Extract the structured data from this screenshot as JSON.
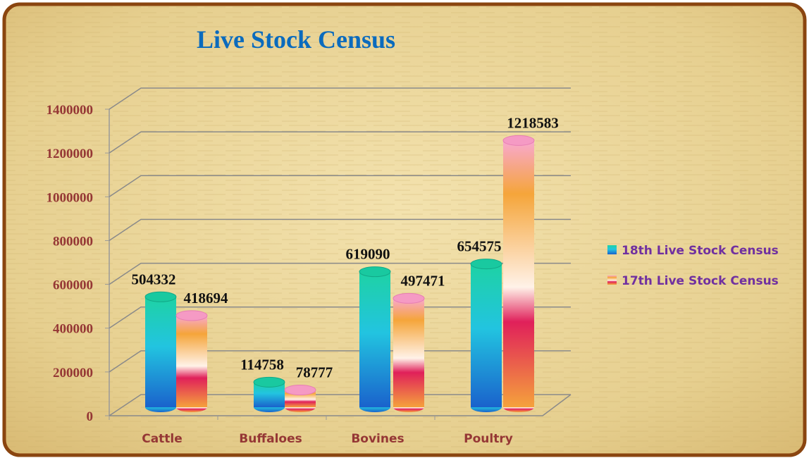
{
  "chart_data": {
    "type": "bar",
    "title": "Live Stock Census",
    "categories": [
      "Cattle",
      "Buffaloes",
      "Bovines",
      "Poultry"
    ],
    "series": [
      {
        "name": "18th Live Stock Census",
        "color": "#1ec8a8",
        "values": [
          504332,
          114758,
          619090,
          654575
        ]
      },
      {
        "name": "17th Live Stock Census",
        "color": "#f5a23c",
        "values": [
          418694,
          78777,
          497471,
          1218583
        ]
      }
    ],
    "ylim": [
      0,
      1400000
    ],
    "yticks": [
      0,
      200000,
      400000,
      600000,
      800000,
      1000000,
      1200000,
      1400000
    ],
    "grid": true,
    "legend": "right"
  }
}
